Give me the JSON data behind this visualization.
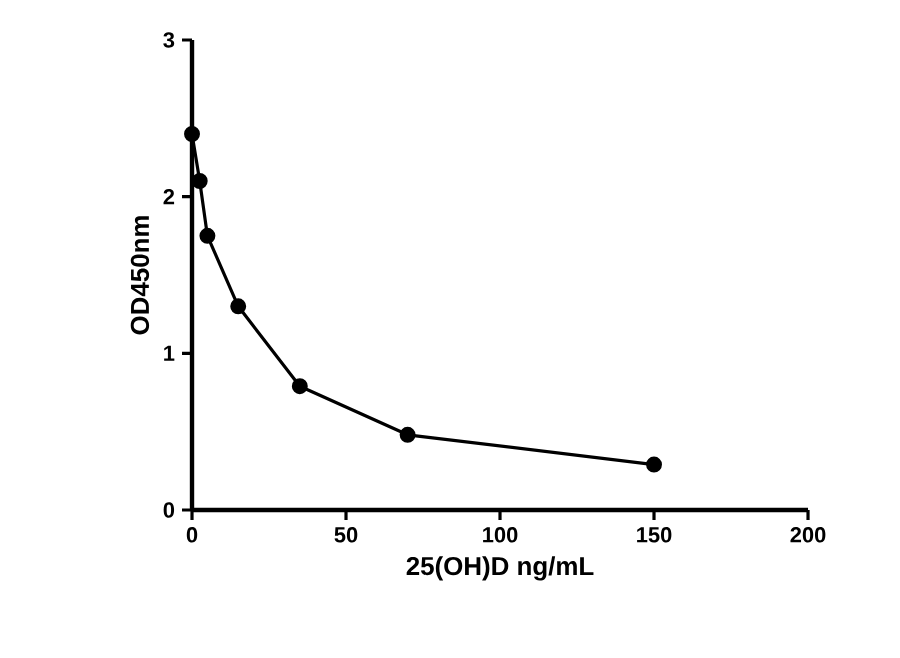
{
  "chart_data": {
    "type": "line",
    "xlabel": "25(OH)D ng/mL",
    "ylabel": "OD450nm",
    "x": [
      0,
      2.5,
      5,
      15,
      35,
      70,
      150
    ],
    "series": [
      {
        "color": "#000000",
        "values": [
          2.4,
          2.1,
          1.75,
          1.3,
          0.79,
          0.48,
          0.29
        ]
      }
    ],
    "xlim": [
      0,
      200
    ],
    "xticks": [
      0,
      50,
      100,
      150,
      200
    ],
    "ylim": [
      0,
      3
    ],
    "yticks": [
      0,
      1,
      2,
      3
    ],
    "marker": "circle",
    "line_style": "solid",
    "grid": false
  }
}
